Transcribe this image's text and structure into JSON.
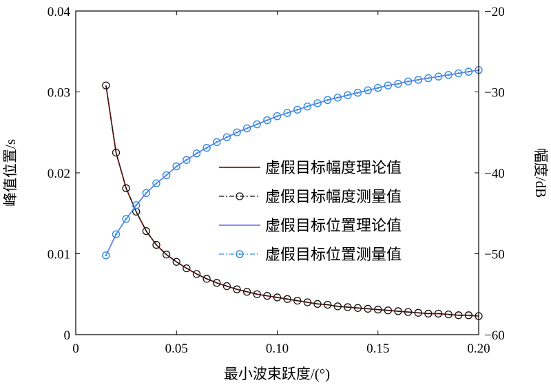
{
  "chart_data": {
    "type": "line",
    "title": "",
    "xlabel": "最小波束跃度/(°)",
    "ylabel_left": "峰值位置/s",
    "ylabel_right": "幅度/dB",
    "xlim": [
      0,
      0.2
    ],
    "ylim_left": [
      0,
      0.04
    ],
    "ylim_right": [
      -60,
      -20
    ],
    "x_ticks": [
      {
        "v": 0,
        "label": "0"
      },
      {
        "v": 0.05,
        "label": "0.05"
      },
      {
        "v": 0.1,
        "label": "0.10"
      },
      {
        "v": 0.15,
        "label": "0.15"
      },
      {
        "v": 0.2,
        "label": "0.20"
      }
    ],
    "y_ticks_left": [
      {
        "v": 0,
        "label": "0"
      },
      {
        "v": 0.01,
        "label": "0.01"
      },
      {
        "v": 0.02,
        "label": "0.02"
      },
      {
        "v": 0.03,
        "label": "0.03"
      },
      {
        "v": 0.04,
        "label": "0.04"
      }
    ],
    "y_ticks_right": [
      {
        "v": -60,
        "label": "−60"
      },
      {
        "v": -50,
        "label": "−50"
      },
      {
        "v": -40,
        "label": "−40"
      },
      {
        "v": -30,
        "label": "−30"
      },
      {
        "v": -20,
        "label": "−20"
      }
    ],
    "grid": false,
    "legend_position": "center-right",
    "x": [
      0.015,
      0.02,
      0.025,
      0.03,
      0.035,
      0.04,
      0.045,
      0.05,
      0.055,
      0.06,
      0.065,
      0.07,
      0.075,
      0.08,
      0.085,
      0.09,
      0.095,
      0.1,
      0.105,
      0.11,
      0.115,
      0.12,
      0.125,
      0.13,
      0.135,
      0.14,
      0.145,
      0.15,
      0.155,
      0.16,
      0.165,
      0.17,
      0.175,
      0.18,
      0.185,
      0.19,
      0.195,
      0.2
    ],
    "series": [
      {
        "name": "虚假目标幅度理论值",
        "axis": "left",
        "style": "solid",
        "color": "#7b1a1a",
        "marker": "none",
        "values": [
          0.0308,
          0.0225,
          0.0181,
          0.0152,
          0.0128,
          0.0111,
          0.0099,
          0.009,
          0.0082,
          0.0075,
          0.0069,
          0.0064,
          0.006,
          0.0056,
          0.0053,
          0.005,
          0.0048,
          0.0046,
          0.0044,
          0.0042,
          0.004,
          0.0038,
          0.0037,
          0.0035,
          0.0034,
          0.0033,
          0.0032,
          0.0031,
          0.003,
          0.0029,
          0.0028,
          0.0027,
          0.0026,
          0.0026,
          0.0025,
          0.0024,
          0.0024,
          0.0023
        ]
      },
      {
        "name": "虚假目标幅度测量值",
        "axis": "left",
        "style": "dashdot",
        "color": "#111111",
        "marker": "circle",
        "values": [
          0.0308,
          0.0225,
          0.0181,
          0.0152,
          0.0128,
          0.0111,
          0.0099,
          0.009,
          0.0082,
          0.0075,
          0.0069,
          0.0064,
          0.006,
          0.0056,
          0.0053,
          0.005,
          0.0048,
          0.0046,
          0.0044,
          0.0042,
          0.004,
          0.0038,
          0.0037,
          0.0035,
          0.0034,
          0.0033,
          0.0032,
          0.0031,
          0.003,
          0.0029,
          0.0028,
          0.0027,
          0.0026,
          0.0026,
          0.0025,
          0.0024,
          0.0024,
          0.0023
        ]
      },
      {
        "name": "虚假目标位置理论值",
        "axis": "right",
        "style": "solid",
        "color": "#7b7bf0",
        "marker": "none",
        "values": [
          -50.2,
          -47.6,
          -45.7,
          -44.0,
          -42.5,
          -41.3,
          -40.3,
          -39.2,
          -38.4,
          -37.6,
          -36.9,
          -36.2,
          -35.6,
          -35.0,
          -34.5,
          -34.0,
          -33.5,
          -33.0,
          -32.6,
          -32.2,
          -31.8,
          -31.4,
          -31.0,
          -30.7,
          -30.4,
          -30.1,
          -29.8,
          -29.5,
          -29.2,
          -29.0,
          -28.7,
          -28.5,
          -28.3,
          -28.1,
          -27.9,
          -27.7,
          -27.5,
          -27.3
        ]
      },
      {
        "name": "虚假目标位置测量值",
        "axis": "right",
        "style": "dashdot",
        "color": "#3a8fe0",
        "marker": "circle-dot",
        "values": [
          -50.2,
          -47.6,
          -45.7,
          -44.0,
          -42.5,
          -41.3,
          -40.3,
          -39.2,
          -38.4,
          -37.6,
          -36.9,
          -36.2,
          -35.6,
          -35.0,
          -34.5,
          -34.0,
          -33.5,
          -33.0,
          -32.6,
          -32.2,
          -31.8,
          -31.4,
          -31.0,
          -30.7,
          -30.4,
          -30.1,
          -29.8,
          -29.5,
          -29.2,
          -29.0,
          -28.7,
          -28.5,
          -28.3,
          -28.1,
          -27.9,
          -27.7,
          -27.5,
          -27.3
        ]
      }
    ]
  }
}
